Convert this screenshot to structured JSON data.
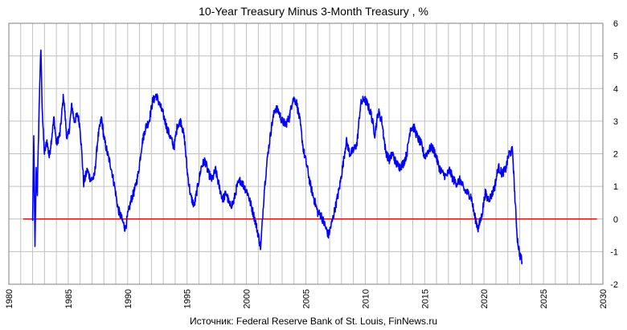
{
  "chart_data": {
    "type": "line",
    "title": "10-Year Treasury Minus 3-Month Treasury , %",
    "source": "Источник: Federal Reserve Bank of St. Louis, FinNews.ru",
    "xlim": [
      1980,
      2030
    ],
    "ylim": [
      -2,
      6
    ],
    "x_ticks": [
      1980,
      1985,
      1990,
      1995,
      2000,
      2005,
      2010,
      2015,
      2020,
      2025,
      2030
    ],
    "y_ticks": [
      -2,
      -1,
      0,
      1,
      2,
      3,
      4,
      5,
      6
    ],
    "y_axis_side": "right",
    "grid": "on (yearly vertical, unit horizontal)",
    "colors": {
      "series": "#0000ff",
      "zero_line": "#ff0000",
      "grid": "#c0c0c0"
    },
    "series": [
      {
        "x": [
          1982.0,
          1982.1,
          1982.2,
          1982.3,
          1982.4,
          1982.5,
          1982.6,
          1982.7,
          1982.8,
          1982.9,
          1983.0,
          1983.2,
          1983.4,
          1983.6,
          1983.8,
          1984.0,
          1984.3,
          1984.6,
          1984.9,
          1985.1,
          1985.3,
          1985.5,
          1985.8,
          1986.0,
          1986.3,
          1986.6,
          1986.9,
          1987.2,
          1987.5,
          1987.8,
          1988.0,
          1988.3,
          1988.6,
          1988.9,
          1989.2,
          1989.5,
          1989.8,
          1990.0,
          1990.3,
          1990.6,
          1990.9,
          1991.2,
          1991.5,
          1991.8,
          1992.1,
          1992.4,
          1992.7,
          1993.0,
          1993.3,
          1993.6,
          1993.9,
          1994.2,
          1994.5,
          1994.8,
          1995.0,
          1995.3,
          1995.6,
          1995.9,
          1996.2,
          1996.5,
          1996.8,
          1997.1,
          1997.4,
          1997.7,
          1998.0,
          1998.3,
          1998.6,
          1998.9,
          1999.2,
          1999.5,
          1999.8,
          2000.1,
          2000.4,
          2000.7,
          2001.0,
          2001.2,
          2001.5,
          2001.8,
          2002.1,
          2002.4,
          2002.7,
          2003.0,
          2003.3,
          2003.6,
          2003.9,
          2004.2,
          2004.5,
          2004.8,
          2005.1,
          2005.4,
          2005.7,
          2006.0,
          2006.3,
          2006.6,
          2006.9,
          2007.2,
          2007.5,
          2007.8,
          2008.1,
          2008.4,
          2008.7,
          2009.0,
          2009.3,
          2009.6,
          2009.9,
          2010.2,
          2010.5,
          2010.8,
          2011.1,
          2011.4,
          2011.7,
          2012.0,
          2012.3,
          2012.6,
          2012.9,
          2013.2,
          2013.5,
          2013.8,
          2014.1,
          2014.4,
          2014.7,
          2015.0,
          2015.3,
          2015.6,
          2015.9,
          2016.2,
          2016.5,
          2016.8,
          2017.1,
          2017.4,
          2017.7,
          2018.0,
          2018.3,
          2018.6,
          2018.9,
          2019.2,
          2019.5,
          2019.8,
          2020.1,
          2020.3,
          2020.6,
          2020.9,
          2021.2,
          2021.5,
          2021.8,
          2022.1,
          2022.4,
          2022.6,
          2022.8,
          2023.0,
          2023.2
        ],
        "y": [
          -0.1,
          2.5,
          -0.9,
          1.5,
          0.8,
          2.6,
          4.2,
          5.2,
          3.5,
          2.6,
          2.0,
          2.4,
          1.9,
          2.5,
          3.1,
          2.3,
          2.6,
          3.8,
          2.4,
          2.8,
          3.5,
          3.0,
          3.2,
          2.8,
          1.1,
          1.5,
          1.2,
          1.3,
          2.5,
          3.1,
          2.5,
          2.0,
          1.6,
          1.0,
          0.3,
          0.0,
          -0.3,
          0.1,
          0.6,
          0.9,
          1.4,
          2.3,
          2.8,
          3.0,
          3.6,
          3.8,
          3.5,
          3.2,
          2.8,
          2.5,
          2.2,
          2.9,
          3.0,
          2.4,
          1.5,
          0.7,
          0.4,
          1.0,
          1.6,
          1.8,
          1.4,
          1.2,
          1.5,
          1.0,
          0.6,
          0.8,
          0.4,
          0.5,
          1.0,
          1.2,
          1.0,
          0.8,
          0.4,
          0.0,
          -0.5,
          -0.9,
          0.9,
          2.0,
          2.8,
          3.4,
          3.3,
          3.0,
          2.9,
          3.1,
          3.7,
          3.6,
          3.0,
          2.1,
          1.6,
          1.0,
          0.6,
          0.2,
          0.1,
          -0.2,
          -0.5,
          -0.1,
          0.4,
          0.9,
          1.6,
          2.4,
          2.0,
          2.1,
          2.3,
          3.5,
          3.7,
          3.5,
          3.2,
          2.6,
          3.3,
          3.0,
          2.1,
          1.8,
          2.0,
          1.7,
          1.6,
          1.7,
          2.0,
          2.8,
          2.8,
          2.5,
          2.3,
          1.9,
          2.1,
          2.2,
          2.0,
          1.6,
          1.4,
          1.3,
          1.5,
          1.2,
          1.1,
          1.2,
          0.9,
          0.8,
          0.7,
          0.1,
          -0.3,
          0.1,
          0.8,
          0.6,
          0.7,
          1.0,
          1.6,
          1.4,
          1.5,
          2.0,
          2.1,
          0.6,
          -0.6,
          -1.1,
          -1.3
        ]
      },
      {
        "name": "zero",
        "x": [
          1981.2,
          2029.5
        ],
        "y": [
          0,
          0
        ]
      }
    ]
  }
}
